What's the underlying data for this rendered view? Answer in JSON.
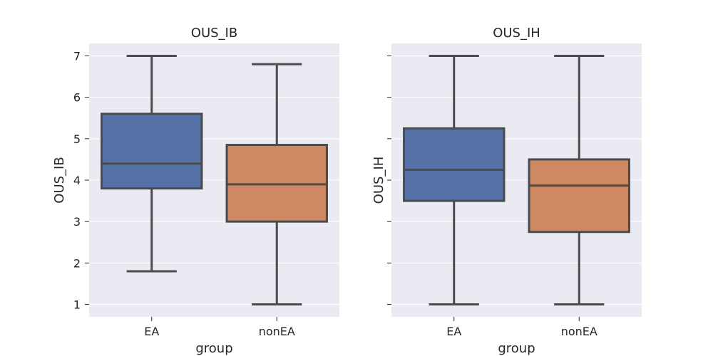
{
  "chart_data": [
    {
      "type": "box",
      "title": "OUS_IB",
      "xlabel": "group",
      "ylabel": "OUS_IB",
      "categories": [
        "EA",
        "nonEA"
      ],
      "ylim": [
        0.7,
        7.3
      ],
      "yticks": [
        1,
        2,
        3,
        4,
        5,
        6,
        7
      ],
      "ytick_labels": [
        "1",
        "2",
        "3",
        "4",
        "5",
        "6",
        "7"
      ],
      "show_yticks": true,
      "grid": true,
      "boxes": [
        {
          "category": "EA",
          "min": 1.8,
          "q1": 3.8,
          "median": 4.4,
          "q3": 5.6,
          "max": 7.0,
          "color": "#5471a8"
        },
        {
          "category": "nonEA",
          "min": 1.0,
          "q1": 3.0,
          "median": 3.9,
          "q3": 4.85,
          "max": 6.8,
          "color": "#cf8962"
        }
      ]
    },
    {
      "type": "box",
      "title": "OUS_IH",
      "xlabel": "group",
      "ylabel": "OUS_IH",
      "categories": [
        "EA",
        "nonEA"
      ],
      "ylim": [
        0.7,
        7.3
      ],
      "yticks": [
        1,
        2,
        3,
        4,
        5,
        6,
        7
      ],
      "ytick_labels": [],
      "show_yticks": false,
      "grid": true,
      "boxes": [
        {
          "category": "EA",
          "min": 1.0,
          "q1": 3.5,
          "median": 4.25,
          "q3": 5.25,
          "max": 7.0,
          "color": "#5471a8"
        },
        {
          "category": "nonEA",
          "min": 1.0,
          "q1": 2.75,
          "median": 3.87,
          "q3": 4.5,
          "max": 7.0,
          "color": "#cf8962"
        }
      ]
    }
  ]
}
